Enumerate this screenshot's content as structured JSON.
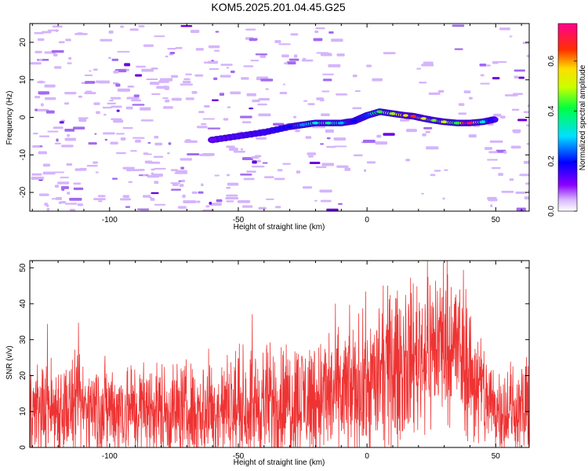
{
  "title": "KOM5.2025.201.04.45.G25",
  "chart_data": [
    {
      "type": "heatmap",
      "xlabel": "Height of straight line (km)",
      "ylabel": "Frequency (Hz)",
      "xlim": [
        -131,
        63
      ],
      "ylim": [
        -25,
        25
      ],
      "xticks": [
        -100,
        -50,
        0,
        50
      ],
      "yticks": [
        -20,
        -10,
        0,
        10,
        20
      ],
      "colorbar": {
        "label": "Normalized spectral amplitude",
        "range": [
          0,
          0.75
        ],
        "ticks": [
          "0.0",
          "0.2",
          "0.4",
          "0.6"
        ]
      },
      "ridge": [
        {
          "x": -60,
          "y": -6.0,
          "v": 0.12
        },
        {
          "x": -50,
          "y": -5.0,
          "v": 0.14
        },
        {
          "x": -40,
          "y": -4.0,
          "v": 0.16
        },
        {
          "x": -30,
          "y": -2.5,
          "v": 0.2
        },
        {
          "x": -25,
          "y": -2.0,
          "v": 0.26
        },
        {
          "x": -20,
          "y": -1.5,
          "v": 0.33
        },
        {
          "x": -15,
          "y": -1.5,
          "v": 0.36
        },
        {
          "x": -10,
          "y": -1.5,
          "v": 0.28
        },
        {
          "x": -5,
          "y": -1.0,
          "v": 0.2
        },
        {
          "x": 0,
          "y": 0.5,
          "v": 0.22
        },
        {
          "x": 5,
          "y": 1.5,
          "v": 0.42
        },
        {
          "x": 10,
          "y": 1.0,
          "v": 0.48
        },
        {
          "x": 15,
          "y": 0.5,
          "v": 0.56
        },
        {
          "x": 18,
          "y": 0.3,
          "v": 0.66
        },
        {
          "x": 22,
          "y": -0.3,
          "v": 0.52
        },
        {
          "x": 26,
          "y": -0.8,
          "v": 0.46
        },
        {
          "x": 30,
          "y": -1.2,
          "v": 0.5
        },
        {
          "x": 35,
          "y": -1.5,
          "v": 0.42
        },
        {
          "x": 40,
          "y": -1.5,
          "v": 0.72
        },
        {
          "x": 45,
          "y": -1.2,
          "v": 0.32
        },
        {
          "x": 50,
          "y": -0.5,
          "v": 0.14
        }
      ]
    },
    {
      "type": "line",
      "xlabel": "Height of straight line (km)",
      "ylabel": "SNR (v/v)",
      "xlim": [
        -131,
        63
      ],
      "ylim": [
        0,
        52
      ],
      "xticks": [
        -100,
        -50,
        0,
        50
      ],
      "yticks": [
        0,
        10,
        20,
        30,
        40,
        50
      ],
      "series": [
        {
          "color": "#ee3333",
          "envelope": [
            {
              "x": -131,
              "mean": 11,
              "spread": 9
            },
            {
              "x": -100,
              "mean": 11,
              "spread": 9
            },
            {
              "x": -70,
              "mean": 10,
              "spread": 9
            },
            {
              "x": -50,
              "mean": 11,
              "spread": 10
            },
            {
              "x": -30,
              "mean": 13,
              "spread": 11
            },
            {
              "x": -10,
              "mean": 15,
              "spread": 12
            },
            {
              "x": 0,
              "mean": 17,
              "spread": 13
            },
            {
              "x": 10,
              "mean": 22,
              "spread": 14
            },
            {
              "x": 20,
              "mean": 26,
              "spread": 14
            },
            {
              "x": 30,
              "mean": 30,
              "spread": 15
            },
            {
              "x": 35,
              "mean": 28,
              "spread": 14
            },
            {
              "x": 42,
              "mean": 18,
              "spread": 12
            },
            {
              "x": 50,
              "mean": 11,
              "spread": 8
            },
            {
              "x": 63,
              "mean": 10,
              "spread": 9
            }
          ]
        }
      ]
    }
  ]
}
